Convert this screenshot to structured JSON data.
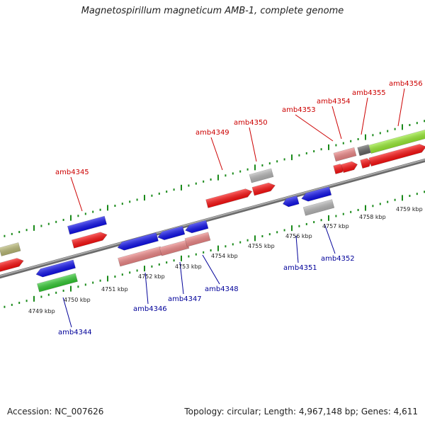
{
  "title": "Magnetospirillum magneticum AMB-1, complete genome",
  "footer": {
    "accession": "Accession: NC_007626",
    "topology": "Topology: circular; Length: 4,967,148 bp; Genes: 4,611"
  },
  "colors": {
    "backbone": "#8a8a8a",
    "tick": "#1a8a1a",
    "red": "#ff1010",
    "blue": "#1010ee",
    "pink": "#f08888",
    "gray": "#b8b8b8",
    "green": "#33cc33",
    "lime": "#99ee33",
    "olive": "#bbbb77",
    "dark": "#666666",
    "label_red": "#cc0000",
    "label_blue": "#000099"
  },
  "scale_labels": [
    "4749 kbp",
    "4750 kbp",
    "4751 kbp",
    "4752 kbp",
    "4753 kbp",
    "4754 kbp",
    "4755 kbp",
    "4756 kbp",
    "4757 kbp",
    "4758 kbp",
    "4759 kbp"
  ],
  "upper_genes": [
    "amb4345",
    "amb4349",
    "amb4350",
    "amb4353",
    "amb4354",
    "amb4355",
    "amb4356"
  ],
  "lower_genes": [
    "amb4344",
    "amb4346",
    "amb4347",
    "amb4348",
    "amb4351",
    "amb4352"
  ]
}
